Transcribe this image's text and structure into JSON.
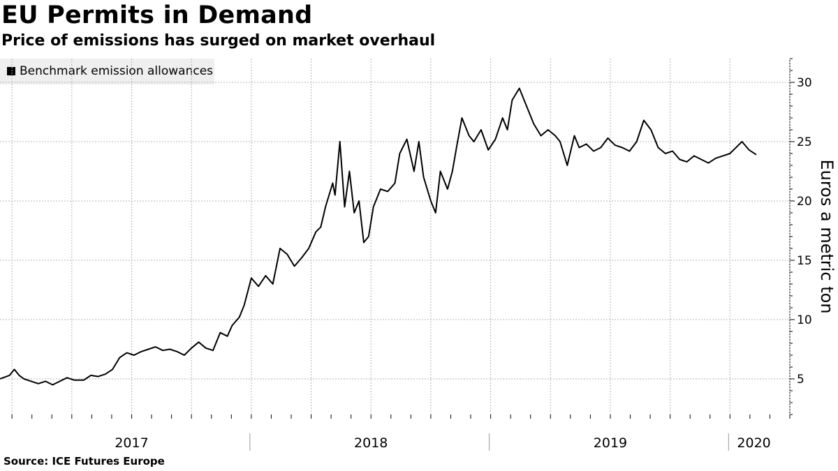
{
  "header": {
    "title": "EU Permits in Demand",
    "subtitle": "Price of emissions has surged on market overhaul"
  },
  "footer": {
    "source": "Source: ICE Futures Europe"
  },
  "colors": {
    "line": "#000000",
    "grid": "#b4b4b4",
    "legend_bg": "#efefef"
  },
  "chart_data": {
    "type": "line",
    "title": "EU Permits in Demand",
    "subtitle": "Price of emissions has surged on market overhaul",
    "ylabel": "Euros a metric ton",
    "xlabel": "",
    "ylim": [
      2,
      32
    ],
    "xlim": [
      2016.95,
      2020.25
    ],
    "y_ticks": [
      5,
      10,
      15,
      20,
      25,
      30
    ],
    "x_year_labels": [
      {
        "label": "2017",
        "x": 2017.5
      },
      {
        "label": "2018",
        "x": 2018.5
      },
      {
        "label": "2019",
        "x": 2019.5
      },
      {
        "label": "2020",
        "x": 2020.1
      }
    ],
    "x_year_boundaries": [
      2018.0,
      2019.0,
      2020.0
    ],
    "grid": true,
    "legend_position": "top-left",
    "series": [
      {
        "name": "Benchmark emission allowances",
        "x": [
          2016.95,
          2016.99,
          2017.01,
          2017.03,
          2017.05,
          2017.08,
          2017.11,
          2017.14,
          2017.17,
          2017.2,
          2017.23,
          2017.26,
          2017.3,
          2017.33,
          2017.36,
          2017.39,
          2017.42,
          2017.45,
          2017.48,
          2017.51,
          2017.54,
          2017.57,
          2017.6,
          2017.63,
          2017.66,
          2017.69,
          2017.72,
          2017.75,
          2017.78,
          2017.81,
          2017.84,
          2017.87,
          2017.9,
          2017.92,
          2017.95,
          2017.97,
          2018.0,
          2018.03,
          2018.06,
          2018.09,
          2018.12,
          2018.15,
          2018.18,
          2018.21,
          2018.24,
          2018.27,
          2018.29,
          2018.31,
          2018.34,
          2018.35,
          2018.37,
          2018.39,
          2018.41,
          2018.43,
          2018.45,
          2018.47,
          2018.49,
          2018.51,
          2018.54,
          2018.57,
          2018.6,
          2018.62,
          2018.65,
          2018.68,
          2018.7,
          2018.72,
          2018.75,
          2018.77,
          2018.79,
          2018.82,
          2018.84,
          2018.86,
          2018.88,
          2018.91,
          2018.93,
          2018.96,
          2018.99,
          2019.02,
          2019.05,
          2019.07,
          2019.09,
          2019.12,
          2019.15,
          2019.18,
          2019.21,
          2019.24,
          2019.27,
          2019.29,
          2019.32,
          2019.35,
          2019.37,
          2019.4,
          2019.43,
          2019.46,
          2019.49,
          2019.52,
          2019.55,
          2019.58,
          2019.61,
          2019.64,
          2019.67,
          2019.7,
          2019.73,
          2019.76,
          2019.79,
          2019.82,
          2019.85,
          2019.88,
          2019.91,
          2019.94,
          2019.97,
          2020.0,
          2020.02,
          2020.05,
          2020.08,
          2020.11
        ],
        "y": [
          5.0,
          5.3,
          5.8,
          5.3,
          5.0,
          4.8,
          4.6,
          4.8,
          4.5,
          4.8,
          5.1,
          4.9,
          4.9,
          5.3,
          5.2,
          5.4,
          5.8,
          6.8,
          7.2,
          7.0,
          7.3,
          7.5,
          7.7,
          7.4,
          7.5,
          7.3,
          7.0,
          7.6,
          8.1,
          7.6,
          7.4,
          8.9,
          8.6,
          9.5,
          10.2,
          11.2,
          13.5,
          12.8,
          13.7,
          13.0,
          16.0,
          15.5,
          14.5,
          15.2,
          16.0,
          17.4,
          17.8,
          19.5,
          21.5,
          20.5,
          25.0,
          19.5,
          22.5,
          19.0,
          20.0,
          16.5,
          17.0,
          19.5,
          21.0,
          20.8,
          21.5,
          24.0,
          25.2,
          22.5,
          25.0,
          22.0,
          20.0,
          19.0,
          22.5,
          21.0,
          22.5,
          24.8,
          27.0,
          25.5,
          25.0,
          26.0,
          24.3,
          25.2,
          27.0,
          26.0,
          28.5,
          29.5,
          28.0,
          26.5,
          25.5,
          26.0,
          25.5,
          25.0,
          23.0,
          25.5,
          24.5,
          24.8,
          24.2,
          24.5,
          25.3,
          24.7,
          24.5,
          24.2,
          25.0,
          26.8,
          26.0,
          24.5,
          24.0,
          24.2,
          23.5,
          23.3,
          23.8,
          23.5,
          23.2,
          23.6,
          23.8,
          24.0,
          24.4,
          25.0,
          24.3,
          23.9
        ]
      }
    ]
  }
}
